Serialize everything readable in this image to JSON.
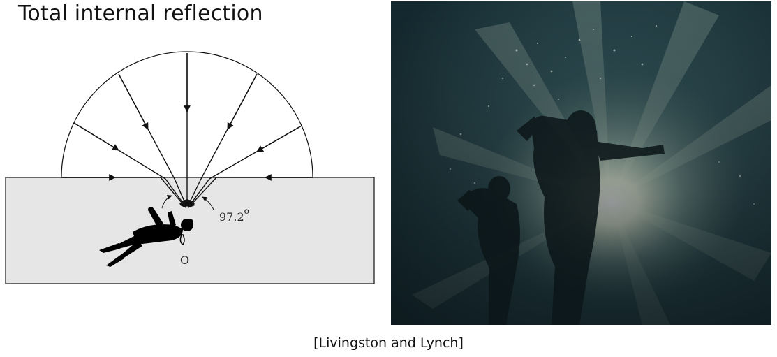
{
  "slide": {
    "title": "Total internal reflection",
    "caption": "[Livingston and Lynch]"
  },
  "diagram": {
    "angle_label": "97.2",
    "angle_degree_symbol": "o",
    "observer_label": "O",
    "water_color": "#e6e6e6",
    "line_color": "#111111"
  },
  "photo": {
    "subject": "divers silhouetted underwater with sunlight streaming down",
    "water_color": "#2c4a50",
    "light_color": "#f4fbe6"
  }
}
